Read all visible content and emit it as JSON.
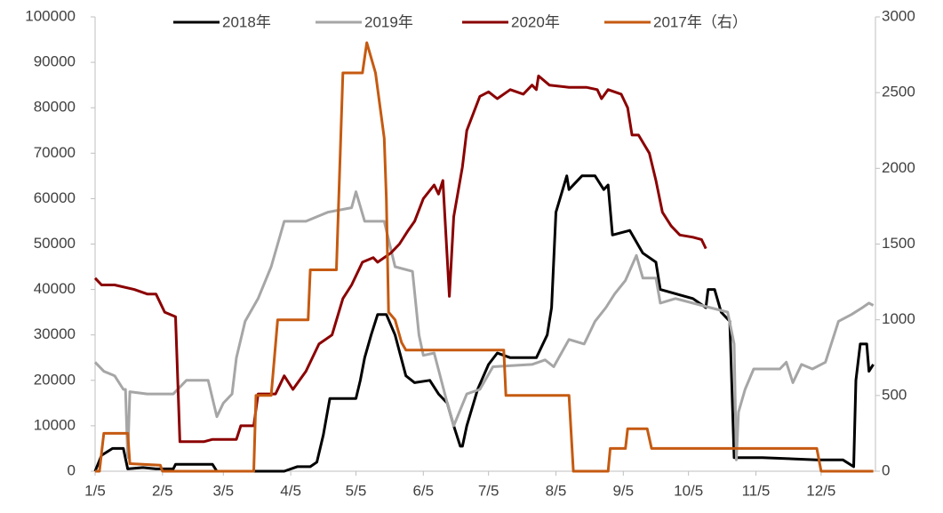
{
  "chart_data": {
    "type": "line",
    "xlim": [
      5,
      364
    ],
    "xticks": [
      {
        "value": 5,
        "label": "1/5"
      },
      {
        "value": 36,
        "label": "2/5"
      },
      {
        "value": 64,
        "label": "3/5"
      },
      {
        "value": 95,
        "label": "4/5"
      },
      {
        "value": 125,
        "label": "5/5"
      },
      {
        "value": 156,
        "label": "6/5"
      },
      {
        "value": 186,
        "label": "7/5"
      },
      {
        "value": 217,
        "label": "8/5"
      },
      {
        "value": 248,
        "label": "9/5"
      },
      {
        "value": 278,
        "label": "10/5"
      },
      {
        "value": 309,
        "label": "11/5"
      },
      {
        "value": 339,
        "label": "12/5"
      }
    ],
    "ylim": [
      0,
      100000
    ],
    "yticks": [
      0,
      10000,
      20000,
      30000,
      40000,
      50000,
      60000,
      70000,
      80000,
      90000,
      100000
    ],
    "y2lim": [
      0,
      3000
    ],
    "y2ticks": [
      0,
      500,
      1000,
      1500,
      2000,
      2500,
      3000
    ],
    "legend": "top",
    "series": [
      {
        "name": "2018年",
        "color": "#000000",
        "x": [
          5,
          8,
          13,
          18,
          20,
          27,
          33,
          41,
          42,
          59,
          61,
          92,
          98,
          104,
          107,
          110,
          113,
          125,
          127,
          129,
          132,
          135,
          139,
          143,
          148,
          152,
          159,
          163,
          167,
          170,
          173,
          174,
          176,
          181,
          186,
          190,
          196,
          208,
          213,
          215,
          217,
          222,
          223,
          229,
          235,
          239,
          241,
          243,
          251,
          257,
          263,
          265,
          280,
          286,
          287,
          290,
          293,
          297,
          299,
          312,
          337,
          349,
          354,
          355,
          357,
          360,
          361,
          363
        ],
        "values": [
          0,
          3500,
          5000,
          5000,
          500,
          800,
          500,
          500,
          1500,
          1500,
          0,
          0,
          1000,
          1000,
          2000,
          8000,
          16000,
          16000,
          20000,
          25000,
          30000,
          34500,
          34500,
          30000,
          21000,
          19500,
          20000,
          17000,
          15000,
          10000,
          5500,
          5500,
          10000,
          18000,
          23500,
          26000,
          25000,
          25000,
          30000,
          36000,
          57000,
          65000,
          62000,
          65000,
          65000,
          62000,
          63000,
          52000,
          53000,
          48000,
          46000,
          40000,
          38000,
          36000,
          40000,
          40000,
          35000,
          33000,
          3000,
          3000,
          2500,
          2500,
          1000,
          20000,
          28000,
          28000,
          22000,
          23500
        ]
      },
      {
        "name": "2019年",
        "color": "#a6a6a6",
        "x": [
          5,
          9,
          14,
          18,
          19,
          20,
          21,
          29,
          41,
          47,
          57,
          61,
          64,
          68,
          70,
          74,
          80,
          86,
          92,
          102,
          112,
          123,
          125,
          129,
          138,
          143,
          151,
          154,
          156,
          161,
          167,
          170,
          176,
          182,
          188,
          206,
          212,
          216,
          223,
          230,
          235,
          240,
          244,
          249,
          254,
          257,
          263,
          265,
          272,
          288,
          296,
          299,
          300,
          301,
          304,
          308,
          320,
          323,
          326,
          330,
          335,
          341,
          347,
          353,
          358,
          361,
          363
        ],
        "values": [
          24000,
          22000,
          21000,
          18000,
          18000,
          3000,
          17500,
          17000,
          17000,
          20000,
          20000,
          12000,
          15000,
          17000,
          25000,
          33000,
          38000,
          45000,
          55000,
          55000,
          57000,
          58000,
          61500,
          55000,
          55000,
          45000,
          44000,
          30000,
          25500,
          26000,
          15000,
          10000,
          17000,
          18000,
          23000,
          23500,
          24500,
          23000,
          29000,
          28000,
          33000,
          36000,
          39000,
          42000,
          47500,
          42500,
          42500,
          37000,
          38000,
          36000,
          35000,
          28000,
          2500,
          13000,
          18000,
          22500,
          22500,
          24000,
          19500,
          23500,
          22500,
          24000,
          33000,
          34500,
          36000,
          37000,
          36500
        ]
      },
      {
        "name": "2020年",
        "color": "#8b0000",
        "x": [
          5,
          8,
          14,
          23,
          29,
          33,
          37,
          42,
          44,
          55,
          59,
          70,
          72,
          78,
          80,
          88,
          92,
          96,
          102,
          108,
          114,
          119,
          123,
          128,
          133,
          135,
          141,
          145,
          149,
          152,
          156,
          161,
          163,
          165,
          168,
          170,
          174,
          176,
          182,
          186,
          190,
          196,
          202,
          206,
          208,
          209,
          214,
          223,
          231,
          236,
          238,
          241,
          247,
          250,
          252,
          255,
          260,
          263,
          266,
          270,
          274,
          280,
          284,
          286
        ],
        "values": [
          42500,
          41000,
          41000,
          40000,
          39000,
          39000,
          35000,
          34000,
          6500,
          6500,
          7000,
          7000,
          10000,
          10000,
          17000,
          17000,
          21000,
          18000,
          22000,
          28000,
          30000,
          38000,
          41000,
          46000,
          47000,
          46000,
          48000,
          50000,
          53000,
          55000,
          60000,
          63000,
          61000,
          64000,
          38500,
          56000,
          67000,
          75000,
          82500,
          83500,
          82000,
          84000,
          83000,
          85000,
          84000,
          87000,
          85000,
          84500,
          84500,
          84000,
          82000,
          84000,
          83000,
          80000,
          74000,
          74000,
          70000,
          64000,
          57000,
          54000,
          52000,
          51500,
          51000,
          49000
        ]
      },
      {
        "name": "2017年（右）",
        "color": "#c55a11",
        "axis": "y2",
        "x": [
          5,
          7,
          9,
          20,
          21,
          35,
          36,
          78,
          79,
          86,
          89,
          103,
          104,
          116,
          119,
          128,
          130,
          134,
          138,
          139,
          140,
          143,
          146,
          148,
          193,
          194,
          223,
          225,
          241,
          242,
          249,
          250,
          259,
          261,
          337,
          339,
          363
        ],
        "values": [
          0,
          0,
          250,
          250,
          50,
          40,
          0,
          0,
          500,
          500,
          1000,
          1000,
          1330,
          1330,
          2630,
          2630,
          2830,
          2630,
          2200,
          1800,
          1050,
          1000,
          850,
          800,
          800,
          500,
          500,
          0,
          0,
          150,
          150,
          280,
          280,
          150,
          150,
          0,
          0
        ]
      }
    ]
  }
}
